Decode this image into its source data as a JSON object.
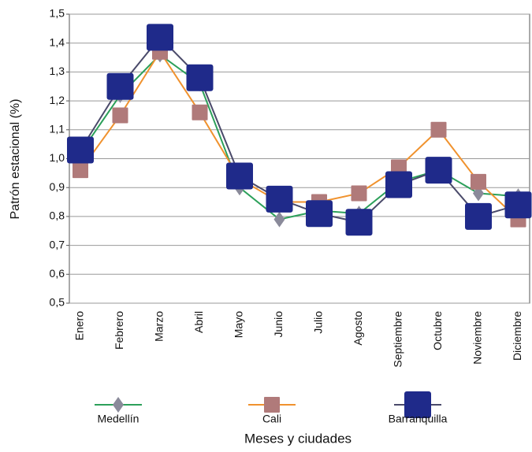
{
  "chart_data": {
    "type": "line",
    "y_label": "Patrón estacional (%)",
    "x_label": "Meses y ciudades",
    "categories": [
      "Enero",
      "Febrero",
      "Marzo",
      "Abril",
      "Mayo",
      "Junio",
      "Julio",
      "Agosto",
      "Septiembre",
      "Octubre",
      "Noviembre",
      "Diciembre"
    ],
    "series": [
      {
        "name": "Medellín",
        "color": "#2ca05a",
        "marker": "diamond",
        "marker_color": "#8a8a9a",
        "values": [
          1.02,
          1.22,
          1.36,
          1.26,
          0.9,
          0.79,
          0.82,
          0.81,
          0.92,
          0.96,
          0.88,
          0.87
        ]
      },
      {
        "name": "Cali",
        "color": "#f0922e",
        "marker": "square",
        "marker_color": "#b07a7a",
        "values": [
          0.96,
          1.15,
          1.37,
          1.16,
          0.93,
          0.85,
          0.85,
          0.88,
          0.97,
          1.1,
          0.92,
          0.79
        ]
      },
      {
        "name": "Barranquilla",
        "color": "#4a4a6a",
        "marker": "big-square",
        "marker_color": "#1f2a8a",
        "values": [
          1.03,
          1.25,
          1.42,
          1.28,
          0.94,
          0.86,
          0.81,
          0.78,
          0.91,
          0.96,
          0.8,
          0.84
        ]
      }
    ],
    "ylim": [
      0.5,
      1.5
    ],
    "yticks": [
      {
        "value": 0.5,
        "label": "0,5"
      },
      {
        "value": 0.6,
        "label": "0,6"
      },
      {
        "value": 0.7,
        "label": "0,7"
      },
      {
        "value": 0.8,
        "label": "0,8"
      },
      {
        "value": 0.9,
        "label": "0,9"
      },
      {
        "value": 1.0,
        "label": "1,0"
      },
      {
        "value": 1.1,
        "label": "1,1"
      },
      {
        "value": 1.2,
        "label": "1,2"
      },
      {
        "value": 1.3,
        "label": "1,3"
      },
      {
        "value": 1.4,
        "label": "1,4"
      },
      {
        "value": 1.5,
        "label": "1,5"
      }
    ],
    "grid": true
  }
}
